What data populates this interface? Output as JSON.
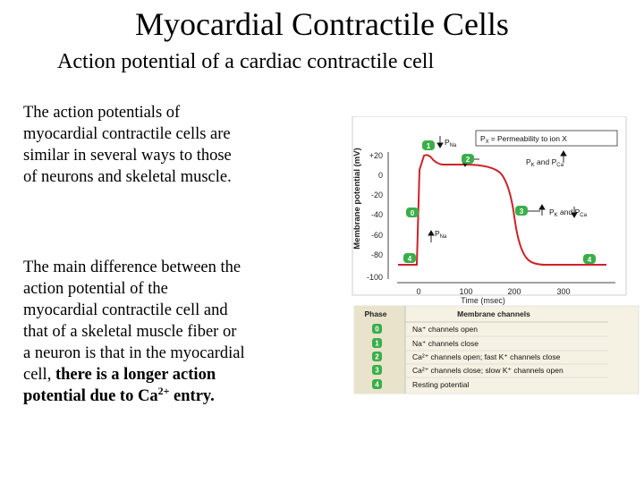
{
  "title": "Myocardial Contractile Cells",
  "subtitle": "Action potential of a cardiac contractile cell",
  "paragraph1": [
    "The action potentials of",
    "myocardial contractile cells are",
    "similar in several ways to those",
    "of neurons and skeletal muscle."
  ],
  "paragraph2": {
    "lines": [
      "The main difference between the",
      "action potential of the",
      "myocardial contractile cell and",
      "that of a skeletal muscle fiber or",
      "a neuron is that in the myocardial"
    ],
    "line6_start": "cell, ",
    "line6_bold": "there is a longer action",
    "line7_bold": "potential due to Ca",
    "line7_sup": "2+",
    "line7_end": " entry."
  },
  "graph": {
    "ylabel": "Membrane potential (mV)",
    "xlabel": "Time (msec)",
    "y_ticks": [
      "+20",
      "0",
      "-20",
      "-40",
      "-60",
      "-80",
      "-100"
    ],
    "x_ticks": [
      "0",
      "100",
      "200",
      "300"
    ],
    "legend": {
      "p": "P",
      "x": "X",
      "text": "=  Permeability to ion X"
    },
    "annotations": {
      "pna": {
        "p": "P",
        "sub": "Na"
      },
      "pk_pca_text": {
        "pk": "P",
        "k": "K",
        "and": " and ",
        "pca": "P",
        "ca": "Ca"
      },
      "pna_low": {
        "p": "P",
        "sub": "Na"
      }
    },
    "phase_markers": [
      "1",
      "2",
      "0",
      "3",
      "4",
      "4"
    ],
    "line_color": "#cc2229",
    "marker_color": "#3aae49"
  },
  "table": {
    "header": [
      "Phase",
      "Membrane channels"
    ],
    "rows": [
      {
        "phase": "0",
        "text": "Na⁺ channels open"
      },
      {
        "phase": "1",
        "text": "Na⁺ channels close"
      },
      {
        "phase": "2",
        "text": "Ca²⁺ channels open; fast K⁺ channels close"
      },
      {
        "phase": "3",
        "text": "Ca²⁺ channels close; slow K⁺ channels open"
      },
      {
        "phase": "4",
        "text": "Resting potential"
      }
    ]
  }
}
